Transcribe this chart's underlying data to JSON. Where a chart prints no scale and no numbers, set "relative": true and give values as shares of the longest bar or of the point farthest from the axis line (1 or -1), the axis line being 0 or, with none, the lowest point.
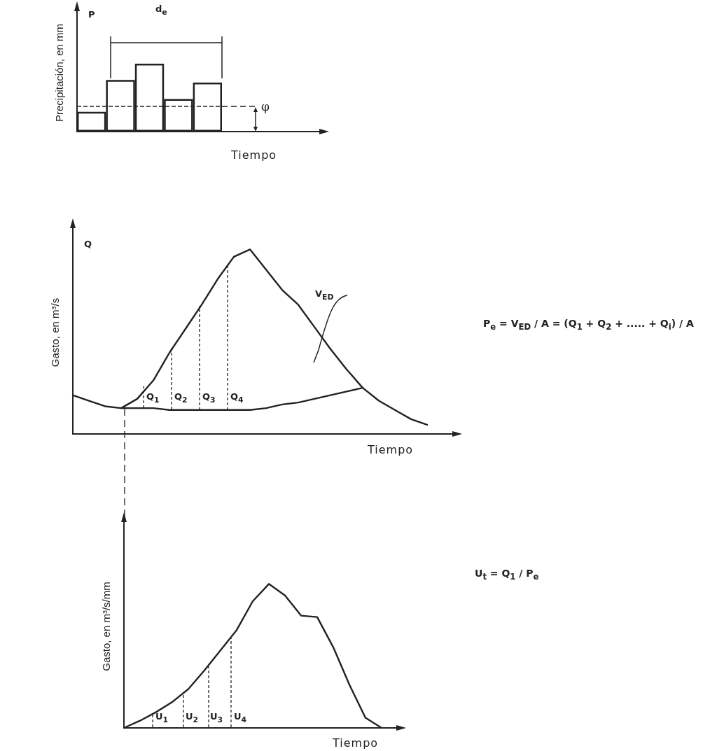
{
  "chart_data": [
    {
      "type": "bar",
      "relative": true,
      "ylabel": "Precipitación, en mm",
      "xlabel": "Tiempo",
      "color": "#ffffff",
      "categories": [
        null,
        null,
        null,
        null,
        null
      ],
      "values": [
        0.29,
        0.76,
        1,
        0.48,
        0.72
      ],
      "ref_lines": [
        {
          "axis": "y",
          "value": 0.37,
          "label": "φ",
          "line_style": "dashed",
          "color": "#222222"
        }
      ],
      "annotations": [
        "P",
        "d$_{e}$"
      ]
    },
    {
      "type": "line",
      "relative": true,
      "marker": "none",
      "line_style": "solid",
      "ylabel": "Gasto, en m³/s",
      "xlabel": "Tiempo",
      "categories": [
        null,
        null,
        null,
        null,
        null,
        null,
        null,
        null,
        null,
        null,
        null,
        null,
        null,
        null,
        null,
        null,
        null,
        null,
        null,
        null,
        null,
        null,
        null
      ],
      "series": [
        {
          "color": "#222222",
          "values": [
            0.21,
            0.18,
            0.15,
            0.14,
            0.19,
            0.29,
            0.44,
            0.57,
            0.7,
            0.84,
            0.96,
            1,
            0.89,
            0.78,
            0.7,
            0.58,
            0.46,
            0.35,
            0.25,
            0.18,
            0.13,
            0.08,
            0.05
          ]
        },
        {
          "color": "#222222",
          "values": [
            null,
            null,
            null,
            0.14,
            0.14,
            0.14,
            0.13,
            0.13,
            0.13,
            0.13,
            0.13,
            0.13,
            0.14,
            0.16,
            0.17,
            0.19,
            0.21,
            0.23,
            0.25,
            null,
            null,
            null,
            null
          ]
        }
      ],
      "annotations": [
        "Q",
        "Q$_{1}$",
        "Q$_{2}$",
        "Q$_{3}$",
        "Q$_{4}$",
        "V$_{ED}$",
        "P$_{e}$ = V$_{ED}$ / A = (Q$_{1}$ + Q$_{2}$ + ..... + Q$_{i}$) / A"
      ]
    },
    {
      "type": "line",
      "relative": true,
      "marker": "none",
      "line_style": "solid",
      "ylabel": "Gasto, en m³/s/mm",
      "xlabel": "Tiempo",
      "categories": [
        null,
        null,
        null,
        null,
        null,
        null,
        null,
        null,
        null,
        null,
        null,
        null,
        null,
        null,
        null,
        null,
        null
      ],
      "series": [
        {
          "color": "#222222",
          "values": [
            0,
            0.05,
            0.11,
            0.18,
            0.27,
            0.4,
            0.54,
            0.68,
            0.88,
            1,
            0.92,
            0.78,
            0.77,
            0.56,
            0.3,
            0.07,
            0
          ]
        }
      ],
      "annotations": [
        "U$_{1}$",
        "U$_{2}$",
        "U$_{3}$",
        "U$_{4}$",
        "U$_{t}$ = Q$_{1}$ / P$_{e}$"
      ]
    }
  ]
}
